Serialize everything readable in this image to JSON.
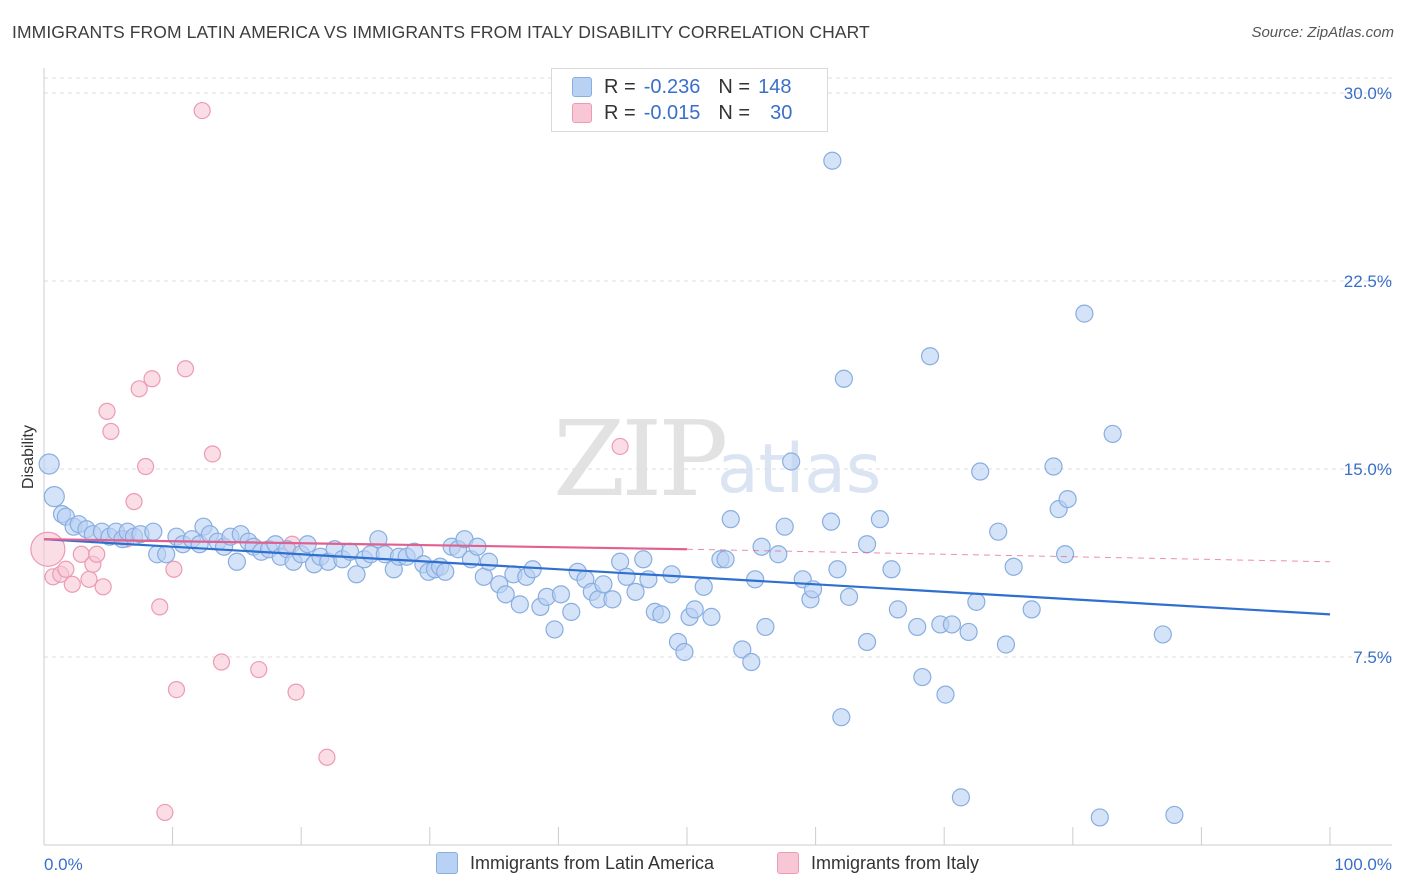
{
  "header": {
    "title": "IMMIGRANTS FROM LATIN AMERICA VS IMMIGRANTS FROM ITALY DISABILITY CORRELATION CHART",
    "source": "Source: ZipAtlas.com"
  },
  "watermark": {
    "zip": "ZIP",
    "atlas": "atlas"
  },
  "legend_top": {
    "rows": [
      {
        "r_label": "R =",
        "r_value": "-0.236",
        "n_label": "N =",
        "n_value": "148"
      },
      {
        "r_label": "R =",
        "r_value": "-0.015",
        "n_label": "N =",
        "n_value": "30"
      }
    ]
  },
  "legend_bottom": {
    "items": [
      {
        "label": "Immigrants from Latin America"
      },
      {
        "label": "Immigrants from Italy"
      }
    ]
  },
  "colors": {
    "blue_fill": "#b9d1f3",
    "blue_stroke": "#88aee0",
    "blue_line": "#2e6fcf",
    "pink_fill": "#f8c7d6",
    "pink_stroke": "#ec9ab6",
    "pink_line": "#e0608f",
    "tick_text": "#3a6fc9",
    "grid": "#dddddd"
  },
  "chart_data": {
    "type": "scatter",
    "title": "IMMIGRANTS FROM LATIN AMERICA VS IMMIGRANTS FROM ITALY DISABILITY CORRELATION CHART",
    "xlabel": "",
    "ylabel": "Disability",
    "xlim": [
      0,
      100
    ],
    "ylim": [
      0,
      30.6
    ],
    "x_tick_labels": [
      "0.0%",
      "100.0%"
    ],
    "y_ticks": [
      7.5,
      15.0,
      22.5,
      30.0
    ],
    "y_tick_labels": [
      "7.5%",
      "15.0%",
      "22.5%",
      "30.0%"
    ],
    "grid": true,
    "series": [
      {
        "name": "Immigrants from Latin America",
        "color": "blue",
        "trend": {
          "x": [
            0,
            100
          ],
          "y": [
            12.2,
            9.2
          ]
        },
        "points": [
          [
            0.4,
            15.2
          ],
          [
            0.8,
            13.9
          ],
          [
            1.4,
            13.2
          ],
          [
            1.7,
            13.1
          ],
          [
            2.3,
            12.7
          ],
          [
            2.7,
            12.8
          ],
          [
            3.3,
            12.6
          ],
          [
            3.8,
            12.4
          ],
          [
            4.5,
            12.5
          ],
          [
            5.1,
            12.3
          ],
          [
            5.6,
            12.5
          ],
          [
            6.1,
            12.2
          ],
          [
            6.5,
            12.5
          ],
          [
            7.0,
            12.3
          ],
          [
            7.5,
            12.4
          ],
          [
            8.5,
            12.5
          ],
          [
            8.8,
            11.6
          ],
          [
            9.5,
            11.6
          ],
          [
            10.3,
            12.3
          ],
          [
            10.8,
            12.0
          ],
          [
            11.5,
            12.2
          ],
          [
            12.1,
            12.0
          ],
          [
            12.4,
            12.7
          ],
          [
            12.9,
            12.4
          ],
          [
            13.5,
            12.1
          ],
          [
            14.0,
            11.9
          ],
          [
            14.5,
            12.3
          ],
          [
            15.0,
            11.3
          ],
          [
            15.3,
            12.4
          ],
          [
            15.9,
            12.1
          ],
          [
            16.3,
            11.9
          ],
          [
            16.9,
            11.7
          ],
          [
            17.5,
            11.8
          ],
          [
            18.0,
            12.0
          ],
          [
            18.4,
            11.5
          ],
          [
            18.9,
            11.8
          ],
          [
            19.4,
            11.3
          ],
          [
            20.0,
            11.6
          ],
          [
            20.5,
            12.0
          ],
          [
            21.0,
            11.2
          ],
          [
            21.5,
            11.5
          ],
          [
            22.1,
            11.3
          ],
          [
            22.6,
            11.8
          ],
          [
            23.2,
            11.4
          ],
          [
            23.8,
            11.7
          ],
          [
            24.3,
            10.8
          ],
          [
            24.9,
            11.4
          ],
          [
            25.4,
            11.6
          ],
          [
            26.0,
            12.2
          ],
          [
            26.5,
            11.6
          ],
          [
            27.2,
            11.0
          ],
          [
            27.6,
            11.5
          ],
          [
            28.2,
            11.5
          ],
          [
            28.8,
            11.7
          ],
          [
            29.5,
            11.2
          ],
          [
            29.9,
            10.9
          ],
          [
            30.4,
            11.0
          ],
          [
            30.8,
            11.1
          ],
          [
            31.2,
            10.9
          ],
          [
            31.7,
            11.9
          ],
          [
            32.2,
            11.8
          ],
          [
            32.7,
            12.2
          ],
          [
            33.2,
            11.4
          ],
          [
            33.7,
            11.9
          ],
          [
            34.2,
            10.7
          ],
          [
            34.6,
            11.3
          ],
          [
            35.4,
            10.4
          ],
          [
            35.9,
            10.0
          ],
          [
            36.5,
            10.8
          ],
          [
            37.0,
            9.6
          ],
          [
            37.5,
            10.7
          ],
          [
            38.0,
            11.0
          ],
          [
            38.6,
            9.5
          ],
          [
            39.1,
            9.9
          ],
          [
            39.7,
            8.6
          ],
          [
            40.2,
            10.0
          ],
          [
            41.0,
            9.3
          ],
          [
            41.5,
            10.9
          ],
          [
            42.1,
            10.6
          ],
          [
            42.6,
            10.1
          ],
          [
            43.1,
            9.8
          ],
          [
            43.5,
            10.4
          ],
          [
            44.2,
            9.8
          ],
          [
            44.8,
            11.3
          ],
          [
            45.3,
            10.7
          ],
          [
            46.0,
            10.1
          ],
          [
            46.6,
            11.4
          ],
          [
            47.0,
            10.6
          ],
          [
            47.5,
            9.3
          ],
          [
            48.0,
            9.2
          ],
          [
            48.8,
            10.8
          ],
          [
            49.3,
            8.1
          ],
          [
            49.8,
            7.7
          ],
          [
            50.2,
            9.1
          ],
          [
            50.6,
            9.4
          ],
          [
            51.3,
            10.3
          ],
          [
            51.9,
            9.1
          ],
          [
            52.6,
            11.4
          ],
          [
            53.4,
            13.0
          ],
          [
            53.0,
            11.4
          ],
          [
            54.3,
            7.8
          ],
          [
            55.0,
            7.3
          ],
          [
            55.3,
            10.6
          ],
          [
            56.1,
            8.7
          ],
          [
            57.1,
            11.6
          ],
          [
            55.8,
            11.9
          ],
          [
            57.6,
            12.7
          ],
          [
            58.1,
            15.3
          ],
          [
            59.0,
            10.6
          ],
          [
            59.6,
            9.8
          ],
          [
            59.8,
            10.2
          ],
          [
            61.2,
            12.9
          ],
          [
            61.3,
            27.3
          ],
          [
            62.2,
            18.6
          ],
          [
            62.0,
            5.1
          ],
          [
            61.7,
            11.0
          ],
          [
            62.6,
            9.9
          ],
          [
            64.0,
            12.0
          ],
          [
            65.0,
            13.0
          ],
          [
            64.0,
            8.1
          ],
          [
            65.9,
            11.0
          ],
          [
            66.4,
            9.4
          ],
          [
            67.9,
            8.7
          ],
          [
            68.3,
            6.7
          ],
          [
            68.9,
            19.5
          ],
          [
            69.7,
            8.8
          ],
          [
            70.1,
            6.0
          ],
          [
            70.6,
            8.8
          ],
          [
            71.3,
            1.9
          ],
          [
            71.9,
            8.5
          ],
          [
            72.5,
            9.7
          ],
          [
            72.8,
            14.9
          ],
          [
            74.2,
            12.5
          ],
          [
            74.8,
            8.0
          ],
          [
            75.4,
            11.1
          ],
          [
            76.8,
            9.4
          ],
          [
            78.5,
            15.1
          ],
          [
            78.9,
            13.4
          ],
          [
            79.4,
            11.6
          ],
          [
            79.6,
            13.8
          ],
          [
            80.9,
            21.2
          ],
          [
            82.1,
            1.1
          ],
          [
            83.1,
            16.4
          ],
          [
            87.0,
            8.4
          ],
          [
            87.9,
            1.2
          ]
        ]
      },
      {
        "name": "Immigrants from Italy",
        "color": "pink",
        "trend": {
          "x": [
            0,
            50
          ],
          "y": [
            12.2,
            11.8
          ],
          "dashed_to": [
            100,
            11.3
          ]
        },
        "points": [
          [
            0.3,
            11.8
          ],
          [
            0.7,
            10.7
          ],
          [
            1.3,
            10.8
          ],
          [
            1.7,
            11.0
          ],
          [
            2.2,
            10.4
          ],
          [
            2.9,
            11.6
          ],
          [
            3.5,
            10.6
          ],
          [
            3.8,
            11.2
          ],
          [
            4.1,
            11.6
          ],
          [
            4.6,
            10.3
          ],
          [
            4.9,
            17.3
          ],
          [
            5.2,
            16.5
          ],
          [
            6.4,
            12.2
          ],
          [
            7.0,
            13.7
          ],
          [
            7.4,
            18.2
          ],
          [
            7.9,
            15.1
          ],
          [
            8.4,
            18.6
          ],
          [
            9.0,
            9.5
          ],
          [
            9.4,
            1.3
          ],
          [
            10.1,
            11.0
          ],
          [
            10.3,
            6.2
          ],
          [
            11.0,
            19.0
          ],
          [
            12.3,
            29.3
          ],
          [
            13.1,
            15.6
          ],
          [
            13.8,
            7.3
          ],
          [
            16.7,
            7.0
          ],
          [
            19.3,
            12.0
          ],
          [
            19.6,
            6.1
          ],
          [
            22.0,
            3.5
          ],
          [
            44.8,
            15.9
          ]
        ]
      }
    ]
  }
}
